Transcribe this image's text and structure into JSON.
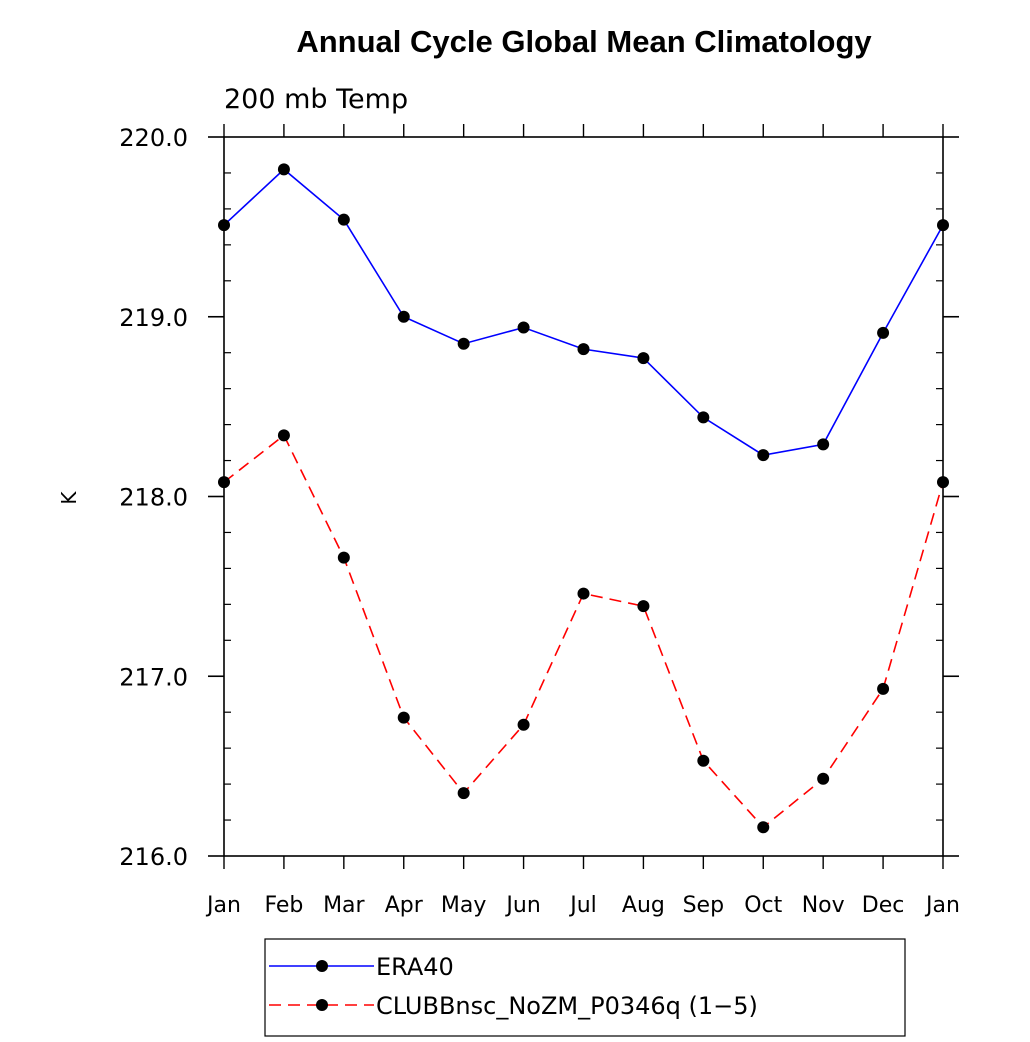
{
  "chart_data": {
    "type": "line",
    "title": "Annual Cycle Global Mean Climatology",
    "subtitle": "200 mb Temp",
    "xlabel": "",
    "ylabel": "K",
    "categories": [
      "Jan",
      "Feb",
      "Mar",
      "Apr",
      "May",
      "Jun",
      "Jul",
      "Aug",
      "Sep",
      "Oct",
      "Nov",
      "Dec",
      "Jan"
    ],
    "ylim": [
      216.0,
      220.0
    ],
    "yticks": [
      "216.0",
      "217.0",
      "218.0",
      "219.0",
      "220.0"
    ],
    "grid": false,
    "legend_position": "bottom",
    "series": [
      {
        "name": "ERA40",
        "color": "#0000ff",
        "line_style": "solid",
        "marker": "filled-circle",
        "values": [
          219.51,
          219.82,
          219.54,
          219.0,
          218.85,
          218.94,
          218.82,
          218.77,
          218.44,
          218.23,
          218.29,
          218.91,
          219.51
        ]
      },
      {
        "name": "CLUBBnsc_NoZM_P0346q (1−5)",
        "color": "#ff0000",
        "line_style": "dashed",
        "marker": "filled-circle",
        "values": [
          218.08,
          218.34,
          217.66,
          216.77,
          216.35,
          216.73,
          217.46,
          217.39,
          216.53,
          216.16,
          216.43,
          216.93,
          218.08
        ]
      }
    ]
  },
  "colors": {
    "axis": "#000000",
    "marker": "#000000"
  }
}
